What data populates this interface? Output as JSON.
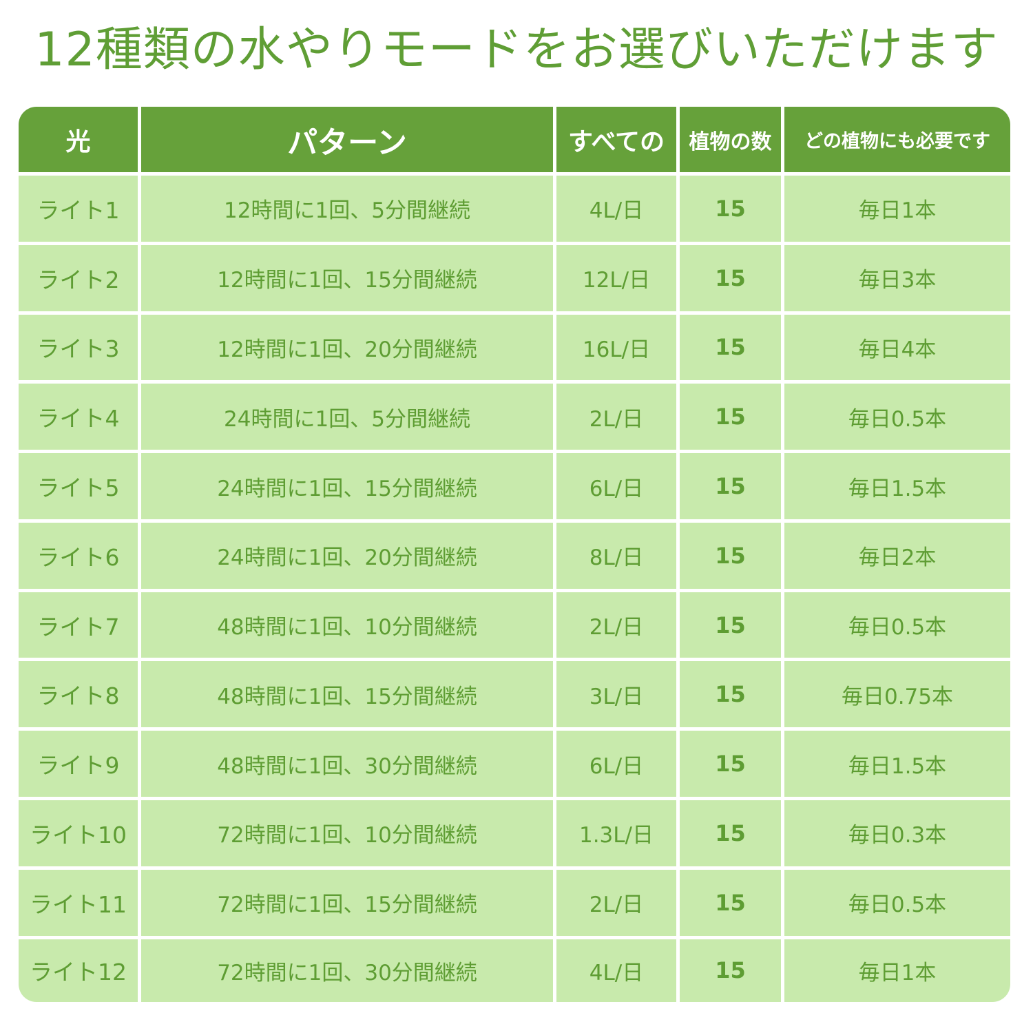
{
  "title": "12種類の水やりモードをお選びいただけます",
  "table": {
    "headers": {
      "light": "光",
      "pattern": "パターン",
      "total": "すべての",
      "count": "植物の数",
      "need": "どの植物にも必要です"
    },
    "rows": [
      {
        "light": "ライト1",
        "pattern": "12時間に1回、5分間継続",
        "total": "4L/日",
        "count": "15",
        "need": "毎日1本"
      },
      {
        "light": "ライト2",
        "pattern": "12時間に1回、15分間継続",
        "total": "12L/日",
        "count": "15",
        "need": "毎日3本"
      },
      {
        "light": "ライト3",
        "pattern": "12時間に1回、20分間継続",
        "total": "16L/日",
        "count": "15",
        "need": "毎日4本"
      },
      {
        "light": "ライト4",
        "pattern": "24時間に1回、5分間継続",
        "total": "2L/日",
        "count": "15",
        "need": "毎日0.5本"
      },
      {
        "light": "ライト5",
        "pattern": "24時間に1回、15分間継続",
        "total": "6L/日",
        "count": "15",
        "need": "毎日1.5本"
      },
      {
        "light": "ライト6",
        "pattern": "24時間に1回、20分間継続",
        "total": "8L/日",
        "count": "15",
        "need": "毎日2本"
      },
      {
        "light": "ライト7",
        "pattern": "48時間に1回、10分間継続",
        "total": "2L/日",
        "count": "15",
        "need": "毎日0.5本"
      },
      {
        "light": "ライト8",
        "pattern": "48時間に1回、15分間継続",
        "total": "3L/日",
        "count": "15",
        "need": "毎日0.75本"
      },
      {
        "light": "ライト9",
        "pattern": "48時間に1回、30分間継続",
        "total": "6L/日",
        "count": "15",
        "need": "毎日1.5本"
      },
      {
        "light": "ライト10",
        "pattern": "72時間に1回、10分間継続",
        "total": "1.3L/日",
        "count": "15",
        "need": "毎日0.3本"
      },
      {
        "light": "ライト11",
        "pattern": "72時間に1回、15分間継続",
        "total": "2L/日",
        "count": "15",
        "need": "毎日0.5本"
      },
      {
        "light": "ライト12",
        "pattern": "72時間に1回、30分間継続",
        "total": "4L/日",
        "count": "15",
        "need": "毎日1本"
      }
    ]
  },
  "colors": {
    "accent": "#66a13a",
    "row_fill": "#c8eaac",
    "text": "#5e9d33"
  }
}
